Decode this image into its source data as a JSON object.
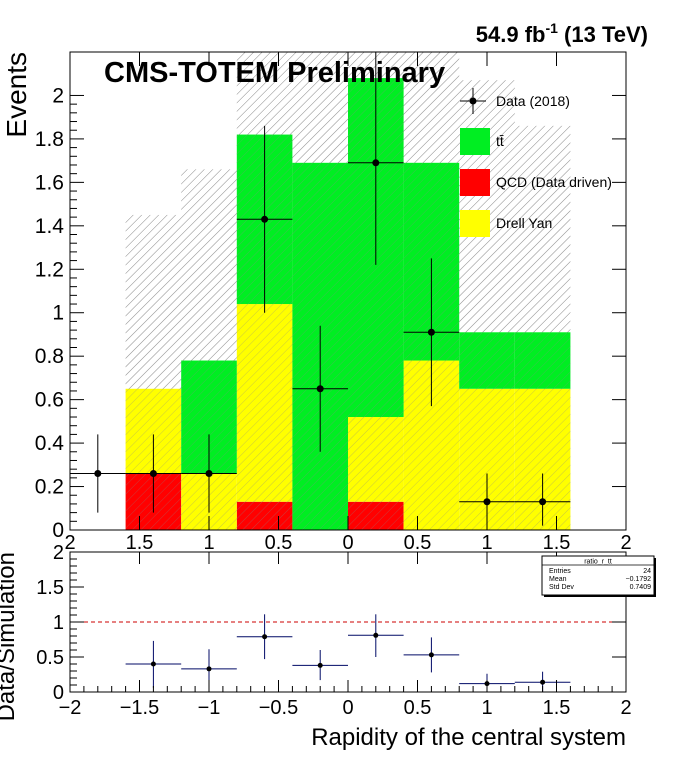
{
  "header": {
    "lumi_main": "54.9 fb",
    "lumi_sup": "-1",
    "lumi_tail": " (13 TeV)",
    "experiment": "CMS-TOTEM Preliminary"
  },
  "chart_data": [
    {
      "type": "bar",
      "stacked": true,
      "ylabel": "Events",
      "xlim": [
        -2,
        2
      ],
      "ylim": [
        0,
        2.2
      ],
      "x_ticks": [
        -2,
        -1.5,
        -1,
        -0.5,
        0,
        0.5,
        1,
        1.5,
        2
      ],
      "x_tick_labels": [
        "2",
        "1.5",
        "1",
        "0.5",
        "0",
        "0.5",
        "1",
        "1.5",
        "2"
      ],
      "y_ticks": [
        0,
        0.2,
        0.4,
        0.6,
        0.8,
        1,
        1.2,
        1.4,
        1.6,
        1.8,
        2
      ],
      "y_tick_labels": [
        "0",
        "0.2",
        "0.4",
        "0.6",
        "0.8",
        "1",
        "1.2",
        "1.4",
        "1.6",
        "1.8",
        "2"
      ],
      "bin_edges": [
        -2,
        -1.6,
        -1.2,
        -0.8,
        -0.4,
        0,
        0.4,
        0.8,
        1.2,
        1.6,
        2
      ],
      "legend_position": "top-right",
      "legend": [
        {
          "label": "Data (2018)",
          "kind": "data"
        },
        {
          "label": "tt̄",
          "kind": "fill",
          "color": "#00ee22"
        },
        {
          "label": "QCD (Data driven)",
          "kind": "fill",
          "color": "#ff0000"
        },
        {
          "label": "Drell Yan",
          "kind": "fill",
          "color": "#ffff00"
        }
      ],
      "series": [
        {
          "name": "QCD (Data driven)",
          "color": "#ff0000",
          "values": [
            0,
            0.26,
            0,
            0.13,
            0,
            0.13,
            0,
            0,
            0,
            0
          ]
        },
        {
          "name": "Drell Yan",
          "color": "#ffff00",
          "values": [
            0,
            0.39,
            0.26,
            0.91,
            0,
            0.39,
            0.78,
            0.65,
            0.65,
            0
          ]
        },
        {
          "name": "tt̄",
          "color": "#00ee22",
          "values": [
            0,
            0,
            0.52,
            0.78,
            1.69,
            1.56,
            0.91,
            0.26,
            0.26,
            0
          ]
        }
      ],
      "uncertainty_band": {
        "low": [
          0,
          0,
          0,
          0,
          0,
          0,
          0,
          0,
          0,
          0
        ],
        "high": [
          0,
          1.45,
          1.66,
          2.2,
          2.2,
          2.2,
          2.2,
          2.07,
          1.86,
          0
        ]
      },
      "data_points": {
        "x": [
          -1.8,
          -1.4,
          -1.0,
          -0.6,
          -0.2,
          0.2,
          0.6,
          1.0,
          1.4
        ],
        "x_err": [
          0.2,
          0.2,
          0.2,
          0.2,
          0.2,
          0.2,
          0.2,
          0.2,
          0.2
        ],
        "y": [
          0.26,
          0.26,
          0.26,
          1.43,
          0.65,
          1.69,
          0.91,
          0.13,
          0.13
        ],
        "y_low": [
          0.08,
          0.08,
          0.08,
          1.0,
          0.36,
          1.22,
          0.57,
          0.02,
          0.02
        ],
        "y_high": [
          0.44,
          0.44,
          0.44,
          1.86,
          0.94,
          2.2,
          1.25,
          0.26,
          0.26
        ]
      }
    },
    {
      "type": "scatter",
      "xlabel": "Rapidity of the central system",
      "ylabel": "Data/Simulation",
      "xlim": [
        -2,
        2
      ],
      "ylim": [
        0,
        2
      ],
      "x_ticks": [
        -2,
        -1.5,
        -1,
        -0.5,
        0,
        0.5,
        1,
        1.5,
        2
      ],
      "x_tick_labels": [
        "−2",
        "−1.5",
        "−1",
        "−0.5",
        "0",
        "0.5",
        "1",
        "1.5",
        "2"
      ],
      "y_ticks": [
        0,
        0.5,
        1,
        1.5,
        2
      ],
      "y_tick_labels": [
        "0",
        "0.5",
        "1",
        "1.5",
        "2"
      ],
      "reference_line": {
        "y": 1,
        "color": "#cc0000",
        "style": "dashed"
      },
      "points": {
        "x": [
          -1.4,
          -1.0,
          -0.6,
          -0.2,
          0.2,
          0.6,
          1.0,
          1.4
        ],
        "x_err": [
          0.2,
          0.2,
          0.2,
          0.2,
          0.2,
          0.2,
          0.2,
          0.2
        ],
        "y": [
          0.4,
          0.33,
          0.79,
          0.38,
          0.81,
          0.53,
          0.12,
          0.14
        ],
        "y_low": [
          0.06,
          0.06,
          0.47,
          0.17,
          0.5,
          0.28,
          0.0,
          0.0
        ],
        "y_high": [
          0.73,
          0.61,
          1.11,
          0.6,
          1.11,
          0.78,
          0.26,
          0.29
        ]
      },
      "stats_box": {
        "title": "ratio_r_tt",
        "rows": [
          {
            "label": "Entries",
            "value": "24"
          },
          {
            "label": "Mean",
            "value": "−0.1792"
          },
          {
            "label": "Std Dev",
            "value": "0.7409"
          }
        ]
      }
    }
  ]
}
